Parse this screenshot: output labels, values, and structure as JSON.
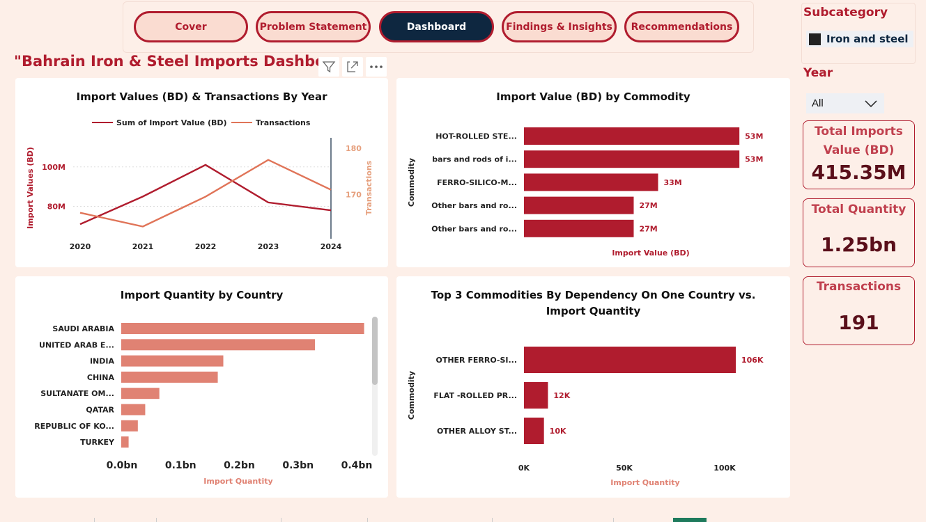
{
  "nav": {
    "cover": "Cover",
    "problem": "Problem Statement",
    "dashboard": "Dashboard",
    "findings": "Findings & Insights",
    "recommendations": "Recommendations"
  },
  "page_title": "\"Bahrain Iron & Steel Imports Dashboard",
  "icons": {
    "filter": "filter-icon",
    "focus": "focus-mode-icon",
    "more": "more-options-icon"
  },
  "slicers": {
    "subcategory": {
      "title": "Subcategory",
      "item": "Iron and steel"
    },
    "year": {
      "title": "Year",
      "selected": "All"
    }
  },
  "kpis": {
    "total_imports": {
      "label_line1": "Total Imports",
      "label_line2": "Value (BD)",
      "value": "415.35M"
    },
    "total_quantity": {
      "label": "Total Quantity",
      "value": "1.25bn"
    },
    "transactions": {
      "label": "Transactions",
      "value": "191"
    }
  },
  "colors": {
    "accent": "#b01c2e",
    "line2": "#e07458",
    "bar_light": "#e08273",
    "navy": "#0e2740"
  },
  "chart_data": [
    {
      "type": "line",
      "title": "Import Values (BD) & Transactions By Year",
      "x": [
        "2020",
        "2021",
        "2022",
        "2023",
        "2024"
      ],
      "series": [
        {
          "name": "Sum of Import Value (BD)",
          "axis": "left",
          "values": [
            71,
            85,
            101,
            82,
            78
          ]
        },
        {
          "name": "Transactions",
          "axis": "right",
          "values": [
            166,
            163,
            169.5,
            177.5,
            171
          ]
        }
      ],
      "ylabel": "Import Values (BD)",
      "y2label": "Transactions",
      "y_ticks": [
        "80M",
        "100M"
      ],
      "y2_ticks": [
        "170",
        "180"
      ],
      "ylim": [
        64,
        114
      ],
      "y2lim": [
        160.5,
        182
      ]
    },
    {
      "type": "bar",
      "title": "Import Value (BD) by Commodity",
      "categories": [
        "HOT-ROLLED STE...",
        "bars and rods of i...",
        "FERRO-SILICO-M...",
        "Other bars and ro...",
        "Other bars and ro..."
      ],
      "values": [
        53,
        53,
        33,
        27,
        27
      ],
      "labels": [
        "53M",
        "53M",
        "33M",
        "27M",
        "27M"
      ],
      "xlabel": "Import Value (BD)",
      "ylabel": "Commodity",
      "xlim": [
        0,
        54
      ]
    },
    {
      "type": "bar",
      "title": "Import Quantity by Country",
      "categories": [
        "SAUDI ARABIA",
        "UNITED ARAB E...",
        "INDIA",
        "CHINA",
        "SULTANATE OM...",
        "QATAR",
        "REPUBLIC OF KO...",
        "TURKEY"
      ],
      "values": [
        0.395,
        0.315,
        0.166,
        0.157,
        0.062,
        0.039,
        0.027,
        0.012
      ],
      "x_ticks": [
        "0.0bn",
        "0.1bn",
        "0.2bn",
        "0.3bn",
        "0.4bn"
      ],
      "xlabel": "Import Quantity",
      "xlim": [
        0,
        0.4
      ]
    },
    {
      "type": "bar",
      "title": "Top 3 Commodities By Dependency On One Country vs. Import Quantity",
      "categories": [
        "OTHER FERRO-SI...",
        "FLAT -ROLLED PR...",
        "OTHER ALLOY ST..."
      ],
      "values": [
        106,
        12,
        10
      ],
      "labels": [
        "106K",
        "12K",
        "10K"
      ],
      "x_ticks": [
        "0K",
        "50K",
        "100K"
      ],
      "xlabel": "Import Quantity",
      "ylabel": "Commodity",
      "xlim": [
        0,
        106
      ]
    }
  ]
}
